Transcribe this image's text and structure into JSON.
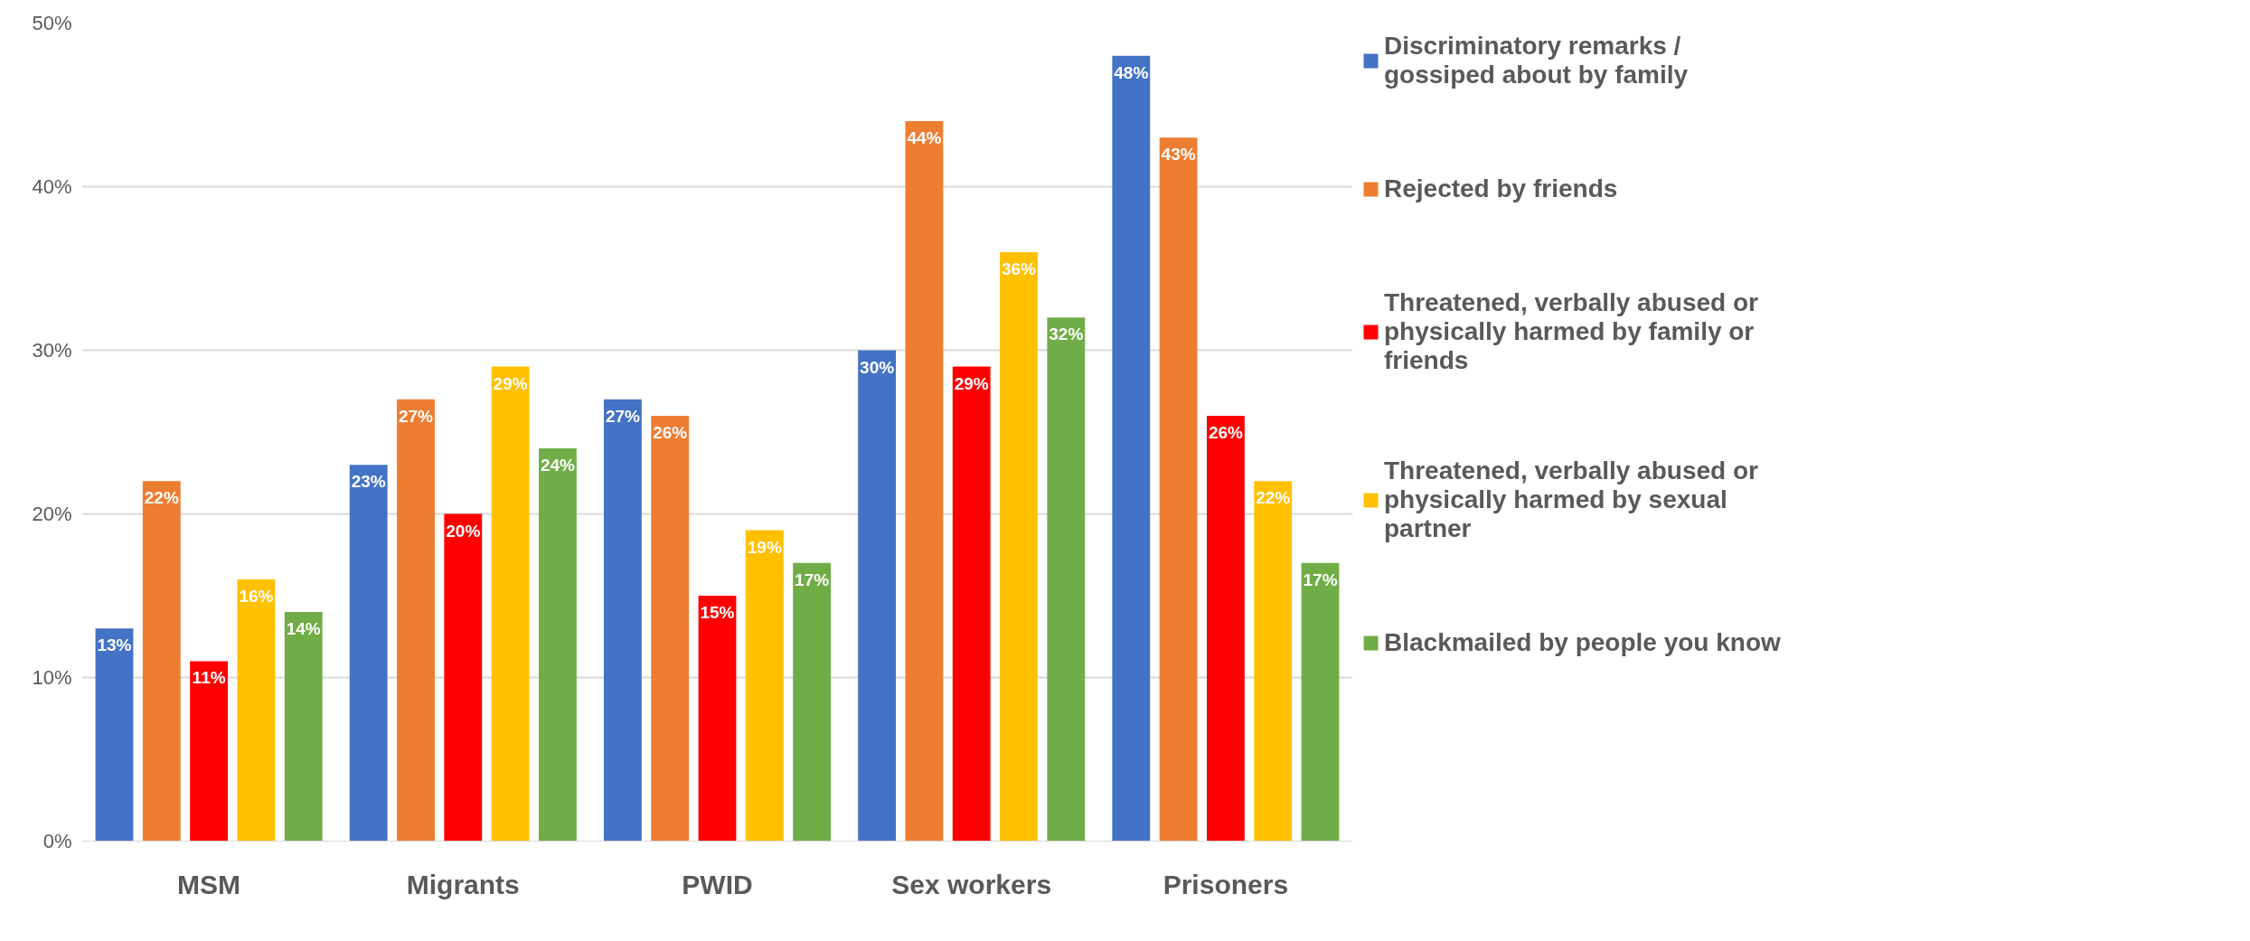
{
  "chart_data": {
    "type": "bar",
    "categories": [
      "MSM",
      "Migrants",
      "PWID",
      "Sex workers",
      "Prisoners"
    ],
    "series": [
      {
        "name": "Discriminatory remarks / gossiped about by family",
        "color": "#4472c4",
        "values": [
          13,
          23,
          27,
          30,
          48
        ],
        "value_labels": [
          "13%",
          "23%",
          "27%",
          "30%",
          "48%"
        ]
      },
      {
        "name": "Rejected by friends",
        "color": "#ed7d31",
        "values": [
          22,
          27,
          26,
          44,
          43
        ],
        "value_labels": [
          "22%",
          "27%",
          "26%",
          "44%",
          "43%"
        ]
      },
      {
        "name": "Threatened, verbally abused or physically harmed by family or friends",
        "color": "#ff0000",
        "values": [
          11,
          20,
          15,
          29,
          26
        ],
        "value_labels": [
          "11%",
          "20%",
          "15%",
          "29%",
          "26%"
        ]
      },
      {
        "name": "Threatened, verbally abused or physically harmed by sexual partner",
        "color": "#ffc000",
        "values": [
          16,
          29,
          19,
          36,
          22
        ],
        "value_labels": [
          "16%",
          "29%",
          "19%",
          "36%",
          "22%"
        ]
      },
      {
        "name": "Blackmailed by people you know",
        "color": "#70ad47",
        "values": [
          14,
          24,
          17,
          32,
          17
        ],
        "value_labels": [
          "14%",
          "24%",
          "17%",
          "32%",
          "17%"
        ]
      }
    ],
    "ylim": [
      0,
      50
    ],
    "yticks": [
      {
        "value": 0,
        "label": "0%"
      },
      {
        "value": 10,
        "label": "10%"
      },
      {
        "value": 20,
        "label": "20%"
      },
      {
        "value": 30,
        "label": "30%"
      },
      {
        "value": 40,
        "label": "40%"
      },
      {
        "value": 50,
        "label": "50%"
      }
    ],
    "grid": "y",
    "legend": "right"
  }
}
